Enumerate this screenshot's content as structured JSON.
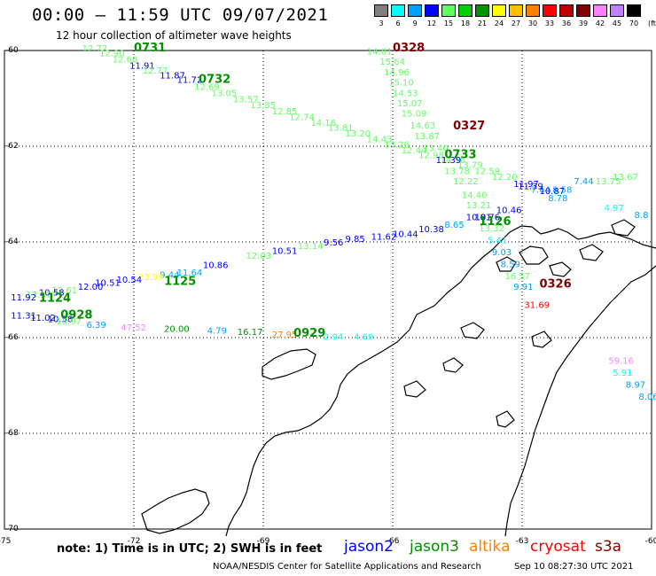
{
  "header": {
    "title": "00:00 – 11:59 UTC 09/07/2021",
    "subtitle": "12 hour collection of altimeter wave heights"
  },
  "color_scale": {
    "unit_label": "(ft)",
    "bins": [
      {
        "label": "3",
        "color": "#808080"
      },
      {
        "label": "6",
        "color": "#00ffff"
      },
      {
        "label": "9",
        "color": "#00a0ff"
      },
      {
        "label": "12",
        "color": "#0000ff"
      },
      {
        "label": "15",
        "color": "#60ff60"
      },
      {
        "label": "18",
        "color": "#00d000"
      },
      {
        "label": "21",
        "color": "#009000"
      },
      {
        "label": "24",
        "color": "#ffff00"
      },
      {
        "label": "27",
        "color": "#ffc000"
      },
      {
        "label": "30",
        "color": "#ff8000"
      },
      {
        "label": "33",
        "color": "#ff0000"
      },
      {
        "label": "36",
        "color": "#c00000"
      },
      {
        "label": "39",
        "color": "#800000"
      },
      {
        "label": "42",
        "color": "#ff80ff"
      },
      {
        "label": "45",
        "color": "#c080ff"
      },
      {
        "label": "70",
        "color": "#000000"
      }
    ]
  },
  "axes": {
    "lat_ticks": [
      "-60",
      "-62",
      "-64",
      "-66",
      "-68",
      "-70"
    ],
    "lon_ticks": [
      "-75",
      "-72",
      "-69",
      "-66",
      "-63",
      "-60"
    ]
  },
  "tracks": [
    {
      "name": "0731",
      "color": "#009000",
      "label_color": "#009000",
      "points": [
        {
          "lon": -73.2,
          "lat": -60.02,
          "v": "12.72",
          "c": "#60ff60"
        },
        {
          "lon": -72.8,
          "lat": -60.12,
          "v": "12.90",
          "c": "#60ff60"
        },
        {
          "lon": -72.5,
          "lat": -60.25,
          "v": "12.60",
          "c": "#60ff60"
        },
        {
          "lon": -72.1,
          "lat": -60.38,
          "v": "11.91",
          "c": "#0000ff"
        },
        {
          "lon": -71.8,
          "lat": -60.48,
          "v": "12.77",
          "c": "#60ff60"
        },
        {
          "lon": -71.4,
          "lat": -60.58,
          "v": "11.87",
          "c": "#0000ff"
        },
        {
          "lon": -71.0,
          "lat": -60.68,
          "v": "11.72",
          "c": "#0000ff"
        },
        {
          "lon": -70.6,
          "lat": -60.82,
          "v": "12.69",
          "c": "#60ff60"
        },
        {
          "lon": -70.2,
          "lat": -60.95,
          "v": "13.05",
          "c": "#60ff60"
        },
        {
          "lon": -69.7,
          "lat": -61.08,
          "v": "13.57",
          "c": "#60ff60"
        },
        {
          "lon": -69.3,
          "lat": -61.2,
          "v": "13.85",
          "c": "#60ff60"
        },
        {
          "lon": -68.8,
          "lat": -61.33,
          "v": "12.85",
          "c": "#60ff60"
        },
        {
          "lon": -68.4,
          "lat": -61.45,
          "v": "12.74",
          "c": "#60ff60"
        },
        {
          "lon": -67.9,
          "lat": -61.57,
          "v": "14.16",
          "c": "#60ff60"
        },
        {
          "lon": -67.5,
          "lat": -61.68,
          "v": "13.81",
          "c": "#60ff60"
        },
        {
          "lon": -67.1,
          "lat": -61.8,
          "v": "13.20",
          "c": "#60ff60"
        },
        {
          "lon": -66.6,
          "lat": -61.92,
          "v": "14.43",
          "c": "#60ff60"
        },
        {
          "lon": -66.2,
          "lat": -62.03,
          "v": "13.26",
          "c": "#60ff60"
        },
        {
          "lon": -65.8,
          "lat": -62.15,
          "v": "12.44",
          "c": "#60ff60"
        },
        {
          "lon": -65.4,
          "lat": -62.25,
          "v": "12.98",
          "c": "#60ff60"
        },
        {
          "lon": -64.9,
          "lat": -62.35,
          "v": "14.36",
          "c": "#60ff60"
        },
        {
          "lon": -64.5,
          "lat": -62.45,
          "v": "13.79",
          "c": "#60ff60"
        },
        {
          "lon": -64.1,
          "lat": -62.58,
          "v": "12.59",
          "c": "#60ff60"
        },
        {
          "lon": -63.7,
          "lat": -62.7,
          "v": "12.20",
          "c": "#60ff60"
        },
        {
          "lon": -63.2,
          "lat": -62.85,
          "v": "11.97",
          "c": "#0000ff"
        },
        {
          "lon": -62.8,
          "lat": -62.97,
          "v": "7.64",
          "c": "#00a0ff"
        },
        {
          "lon": -62.3,
          "lat": -62.97,
          "v": "8.58",
          "c": "#00a0ff"
        },
        {
          "lon": -61.8,
          "lat": -62.8,
          "v": "7.44",
          "c": "#00a0ff"
        },
        {
          "lon": -61.3,
          "lat": -62.8,
          "v": "13.75",
          "c": "#60ff60"
        },
        {
          "lon": -60.9,
          "lat": -62.7,
          "v": "13.67",
          "c": "#60ff60"
        }
      ],
      "label": {
        "lon": -72.0,
        "lat": -60.02
      }
    },
    {
      "name": "0732",
      "color": "#009000",
      "label_color": "#009000",
      "points": [],
      "label": {
        "lon": -70.5,
        "lat": -60.68
      }
    },
    {
      "name": "0328",
      "color": "#800000",
      "label_color": "#800000",
      "points": [
        {
          "lon": -66.6,
          "lat": -60.08,
          "v": "14.81",
          "c": "#60ff60"
        },
        {
          "lon": -66.3,
          "lat": -60.3,
          "v": "15.64",
          "c": "#60ff60"
        },
        {
          "lon": -66.2,
          "lat": -60.52,
          "v": "14.96",
          "c": "#60ff60"
        },
        {
          "lon": -66.1,
          "lat": -60.73,
          "v": "15.10",
          "c": "#60ff60"
        },
        {
          "lon": -66.0,
          "lat": -60.95,
          "v": "14.53",
          "c": "#60ff60"
        },
        {
          "lon": -65.9,
          "lat": -61.17,
          "v": "15.07",
          "c": "#60ff60"
        },
        {
          "lon": -65.8,
          "lat": -61.38,
          "v": "15.09",
          "c": "#60ff60"
        },
        {
          "lon": -65.6,
          "lat": -61.63,
          "v": "14.63",
          "c": "#60ff60"
        },
        {
          "lon": -65.5,
          "lat": -61.85,
          "v": "13.87",
          "c": "#60ff60"
        },
        {
          "lon": -65.3,
          "lat": -62.1,
          "v": "13.40",
          "c": "#60ff60"
        },
        {
          "lon": -65.0,
          "lat": -62.35,
          "v": "11.39",
          "c": "#0000ff"
        },
        {
          "lon": -64.8,
          "lat": -62.58,
          "v": "13.78",
          "c": "#60ff60"
        },
        {
          "lon": -64.6,
          "lat": -62.8,
          "v": "12.22",
          "c": "#60ff60"
        },
        {
          "lon": -64.4,
          "lat": -63.08,
          "v": "14.40",
          "c": "#60ff60"
        },
        {
          "lon": -64.3,
          "lat": -63.3,
          "v": "13.21",
          "c": "#60ff60"
        },
        {
          "lon": -64.1,
          "lat": -63.55,
          "v": "10.76",
          "c": "#0000ff"
        },
        {
          "lon": -64.0,
          "lat": -63.78,
          "v": "13.32",
          "c": "#60ff60"
        },
        {
          "lon": -63.8,
          "lat": -64.03,
          "v": "5.41",
          "c": "#00ffff"
        },
        {
          "lon": -63.7,
          "lat": -64.28,
          "v": "9.03",
          "c": "#00a0ff"
        },
        {
          "lon": -63.5,
          "lat": -64.53,
          "v": "8.59",
          "c": "#00a0ff"
        },
        {
          "lon": -63.4,
          "lat": -64.78,
          "v": "16.57",
          "c": "#60ff60"
        },
        {
          "lon": -63.2,
          "lat": -65.0,
          "v": "9.91",
          "c": "#00a0ff"
        }
      ],
      "label": {
        "lon": -66.0,
        "lat": -60.02
      }
    },
    {
      "name": "0327",
      "color": "#800000",
      "label_color": "#800000",
      "points": [],
      "label": {
        "lon": -64.6,
        "lat": -61.65
      }
    },
    {
      "name": "0733",
      "color": "#009000",
      "label_color": "#009000",
      "points": [
        {
          "lon": -63.1,
          "lat": -62.9,
          "v": "11.39",
          "c": "#0000ff"
        },
        {
          "lon": -62.6,
          "lat": -63.0,
          "v": "10.87",
          "c": "#0000ff"
        },
        {
          "lon": -62.4,
          "lat": -63.15,
          "v": "8.78",
          "c": "#00a0ff"
        },
        {
          "lon": -61.1,
          "lat": -63.35,
          "v": "4.97",
          "c": "#00ffff"
        },
        {
          "lon": -60.4,
          "lat": -63.5,
          "v": "8.8",
          "c": "#00a0ff"
        }
      ],
      "label": {
        "lon": -64.8,
        "lat": -62.25
      }
    },
    {
      "name": "1126",
      "color": "#009000",
      "label_color": "#009000",
      "points": [
        {
          "lon": -63.6,
          "lat": -63.4,
          "v": "10.46",
          "c": "#0000ff"
        },
        {
          "lon": -64.3,
          "lat": -63.55,
          "v": "10.81",
          "c": "#0000ff"
        },
        {
          "lon": -64.8,
          "lat": -63.7,
          "v": "8.65",
          "c": "#00a0ff"
        },
        {
          "lon": -65.4,
          "lat": -63.8,
          "v": "10.38",
          "c": "#0000ff"
        },
        {
          "lon": -66.0,
          "lat": -63.9,
          "v": "10.44",
          "c": "#0000ff"
        },
        {
          "lon": -66.5,
          "lat": -63.95,
          "v": "11.62",
          "c": "#0000ff"
        },
        {
          "lon": -67.1,
          "lat": -64.0,
          "v": "9.85",
          "c": "#0000ff"
        },
        {
          "lon": -67.6,
          "lat": -64.07,
          "v": "9.56",
          "c": "#0000ff"
        },
        {
          "lon": -68.2,
          "lat": -64.15,
          "v": "13.14",
          "c": "#60ff60"
        },
        {
          "lon": -68.8,
          "lat": -64.25,
          "v": "10.51",
          "c": "#0000ff"
        },
        {
          "lon": -69.4,
          "lat": -64.35,
          "v": "12.03",
          "c": "#60ff60"
        },
        {
          "lon": -70.4,
          "lat": -64.55,
          "v": "10.86",
          "c": "#0000ff"
        }
      ],
      "label": {
        "lon": -64.0,
        "lat": -63.65
      }
    },
    {
      "name": "1125",
      "color": "#009000",
      "label_color": "#009000",
      "points": [
        {
          "lon": -71.0,
          "lat": -64.7,
          "v": "11.64",
          "c": "#00a0ff"
        },
        {
          "lon": -71.4,
          "lat": -64.75,
          "v": "9.44",
          "c": "#00a0ff"
        },
        {
          "lon": -71.9,
          "lat": -64.8,
          "v": "23.99",
          "c": "#ffff00"
        },
        {
          "lon": -72.4,
          "lat": -64.85,
          "v": "10.54",
          "c": "#0000ff"
        },
        {
          "lon": -72.9,
          "lat": -64.92,
          "v": "10.51",
          "c": "#0000ff"
        },
        {
          "lon": -73.3,
          "lat": -65.0,
          "v": "12.00",
          "c": "#0000ff"
        },
        {
          "lon": -73.9,
          "lat": -65.07,
          "v": "12.61",
          "c": "#60ff60"
        },
        {
          "lon": -74.2,
          "lat": -65.12,
          "v": "10.58",
          "c": "#0000ff"
        },
        {
          "lon": -74.5,
          "lat": -65.17,
          "v": "13.37",
          "c": "#60ff60"
        },
        {
          "lon": -74.85,
          "lat": -65.22,
          "v": "11.92",
          "c": "#0000ff"
        }
      ],
      "label": {
        "lon": -71.3,
        "lat": -64.9
      }
    },
    {
      "name": "1124",
      "color": "#009000",
      "label_color": "#009000",
      "points": [],
      "label": {
        "lon": -74.2,
        "lat": -65.25
      }
    },
    {
      "name": "0928",
      "color": "#009000",
      "label_color": "#009000",
      "points": [
        {
          "lon": -74.85,
          "lat": -65.6,
          "v": "11.31",
          "c": "#0000ff"
        },
        {
          "lon": -74.4,
          "lat": -65.65,
          "v": "11.02",
          "c": "#0000ff"
        },
        {
          "lon": -74.0,
          "lat": -65.68,
          "v": "10.58",
          "c": "#0000ff"
        },
        {
          "lon": -73.8,
          "lat": -65.72,
          "v": "15.97",
          "c": "#60ff60"
        },
        {
          "lon": -73.1,
          "lat": -65.8,
          "v": "6.39",
          "c": "#00a0ff"
        },
        {
          "lon": -72.3,
          "lat": -65.85,
          "v": "47.52",
          "c": "#ff80ff"
        },
        {
          "lon": -71.3,
          "lat": -65.88,
          "v": "20.00",
          "c": "#009000"
        },
        {
          "lon": -70.3,
          "lat": -65.92,
          "v": "4.79",
          "c": "#00a0ff"
        },
        {
          "lon": -69.6,
          "lat": -65.94,
          "v": "16.17",
          "c": "#009000"
        }
      ],
      "label": {
        "lon": -73.7,
        "lat": -65.6
      }
    },
    {
      "name": "0929",
      "color": "#009000",
      "label_color": "#009000",
      "points": [
        {
          "lon": -68.8,
          "lat": -66.0,
          "v": "27.95",
          "c": "#ff8000"
        },
        {
          "lon": -67.6,
          "lat": -66.05,
          "v": "2.94",
          "c": "#00ffff"
        },
        {
          "lon": -66.9,
          "lat": -66.05,
          "v": "4.69",
          "c": "#00ffff"
        }
      ],
      "label": {
        "lon": -68.3,
        "lat": -65.98
      }
    },
    {
      "name": "0326",
      "color": "#800000",
      "label_color": "#800000",
      "points": [
        {
          "lon": -62.95,
          "lat": -65.38,
          "v": "31.69",
          "c": "#ff0000"
        },
        {
          "lon": -61.0,
          "lat": -66.55,
          "v": "59.16",
          "c": "#ff80ff"
        },
        {
          "lon": -60.9,
          "lat": -66.8,
          "v": "5.91",
          "c": "#00ffff"
        },
        {
          "lon": -60.6,
          "lat": -67.05,
          "v": "8.97",
          "c": "#00a0ff"
        },
        {
          "lon": -60.3,
          "lat": -67.3,
          "v": "8.06",
          "c": "#00a0ff"
        }
      ],
      "label": {
        "lon": -62.6,
        "lat": -64.95
      }
    }
  ],
  "footer": {
    "note": "note:  1) Time is in UTC;  2) SWH is in feet",
    "legend": [
      {
        "label": "jason2",
        "color": "#0000ff"
      },
      {
        "label": "jason3",
        "color": "#009000"
      },
      {
        "label": "altika",
        "color": "#ff8000"
      },
      {
        "label": "cryosat",
        "color": "#ff0000"
      },
      {
        "label": "s3a",
        "color": "#800000"
      }
    ],
    "credit": "NOAA/NESDIS Center for Satellite Applications and Research",
    "timestamp": "Sep 10 08:27:30 UTC 2021"
  }
}
